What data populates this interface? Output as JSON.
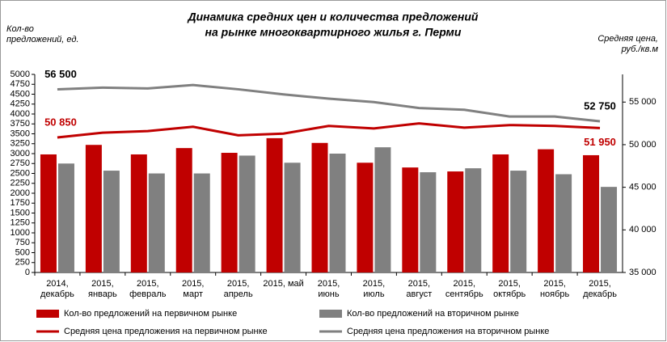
{
  "chart_data": {
    "type": "bar_line",
    "title": [
      "Динамика  средних цен и количества предложений",
      "на рынке многоквартирного жилья г. Перми"
    ],
    "y_label": [
      "Кол-во",
      "предложений, ед."
    ],
    "y2_label": [
      "Средняя цена,",
      "руб./кв.м"
    ],
    "categories": [
      "2014, декабрь",
      "2015, январь",
      "2015, февраль",
      "2015, март",
      "2015, апрель",
      "2015, май",
      "2015, июнь",
      "2015, июль",
      "2015, август",
      "2015, сентябрь",
      "2015, октябрь",
      "2015, ноябрь",
      "2015, декабрь"
    ],
    "series": [
      {
        "name": "Кол-во предложений на первичном рынке",
        "kind": "bar",
        "color": "#c00000",
        "values": [
          2980,
          3220,
          2980,
          3140,
          3020,
          3390,
          3270,
          2770,
          2650,
          2550,
          2980,
          3110,
          2960
        ]
      },
      {
        "name": "Кол-во предложений на вторичном рынке",
        "kind": "bar",
        "color": "#808080",
        "values": [
          2750,
          2570,
          2500,
          2500,
          2950,
          2770,
          3000,
          3160,
          2530,
          2630,
          2570,
          2480,
          2160
        ]
      },
      {
        "name": "Средняя цена предложения на первичном рынке",
        "kind": "line",
        "axis": "y2",
        "color": "#c00000",
        "values": [
          50850,
          51400,
          51600,
          52100,
          51100,
          51300,
          52200,
          51900,
          52500,
          52000,
          52300,
          52200,
          51950
        ],
        "value_labels": [
          "50 850",
          null,
          null,
          null,
          null,
          null,
          null,
          null,
          null,
          null,
          null,
          null,
          "51 950"
        ]
      },
      {
        "name": "Средняя цена предложения на вторичном рынке",
        "kind": "line",
        "axis": "y2",
        "color": "#808080",
        "values": [
          56500,
          56700,
          56600,
          57000,
          56500,
          55900,
          55400,
          55000,
          54300,
          54100,
          53300,
          53300,
          52750
        ],
        "value_labels": [
          "56 500",
          null,
          null,
          null,
          null,
          null,
          null,
          null,
          null,
          null,
          null,
          null,
          "52 750"
        ]
      }
    ],
    "ylim": [
      0,
      5000
    ],
    "yticks": [
      0,
      250,
      500,
      750,
      1000,
      1250,
      1500,
      1750,
      2000,
      2250,
      2500,
      2750,
      3000,
      3250,
      3500,
      3750,
      4000,
      4250,
      4500,
      4750,
      5000
    ],
    "y2lim": [
      35000,
      58250
    ],
    "y2ticks": [
      {
        "value": 35000,
        "label": "35 000"
      },
      {
        "value": 40000,
        "label": "40 000"
      },
      {
        "value": 45000,
        "label": "45 000"
      },
      {
        "value": 50000,
        "label": "50 000"
      },
      {
        "value": 55000,
        "label": "55 000"
      }
    ]
  }
}
